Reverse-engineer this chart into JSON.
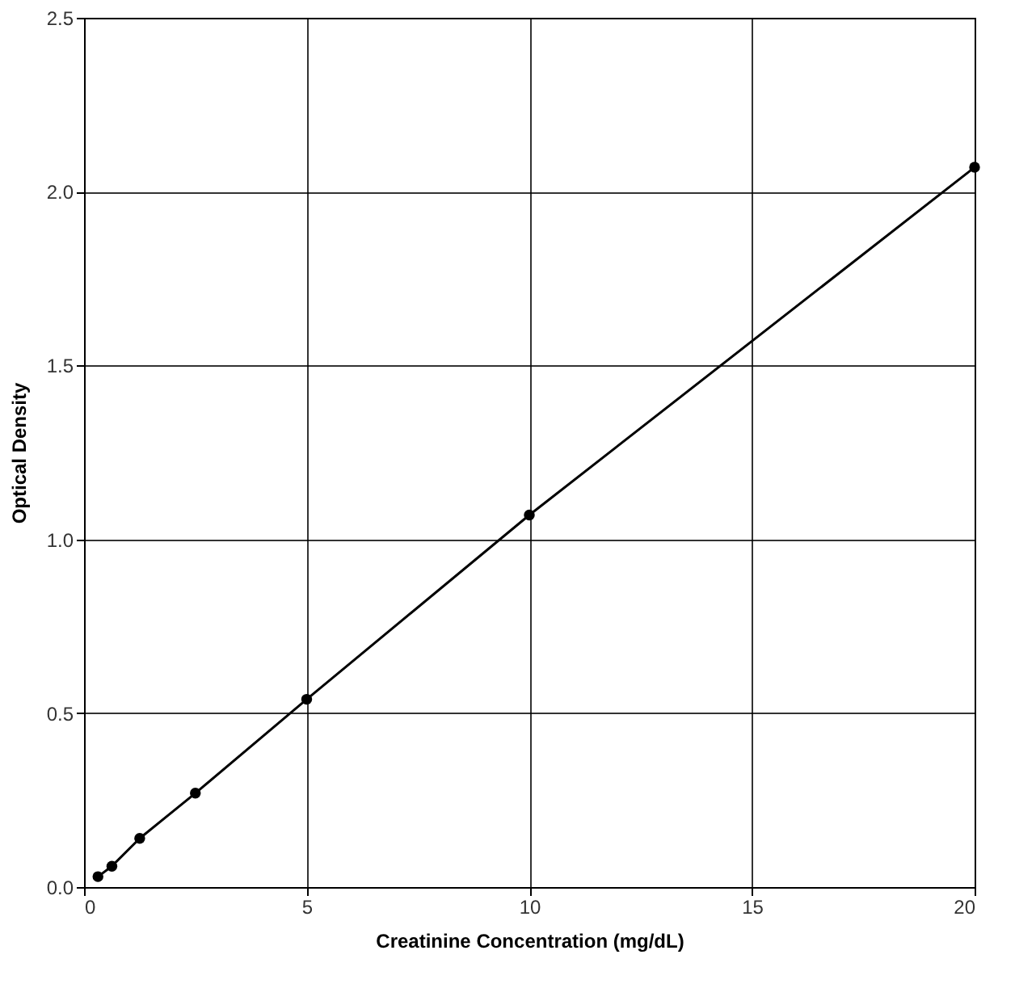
{
  "chart_data": {
    "type": "line",
    "xlabel": "Creatinine Concentration (mg/dL)",
    "ylabel": "Optical Density",
    "x": [
      0.3125,
      0.625,
      1.25,
      2.5,
      5,
      10,
      20
    ],
    "series": [
      {
        "color": "#000000",
        "values": [
          0.03,
          0.06,
          0.14,
          0.27,
          0.54,
          1.07,
          2.07
        ]
      }
    ],
    "xlim": [
      0,
      20
    ],
    "xticks": [
      0,
      5,
      10,
      15,
      20
    ],
    "ylim": [
      0,
      2.5
    ],
    "yticks": [
      {
        "value": 0,
        "label": "0.0"
      },
      0.5,
      {
        "value": 1,
        "label": "1.0"
      },
      1.5,
      {
        "value": 2,
        "label": "2.0"
      },
      2.5
    ],
    "grid": true,
    "marker": "circle",
    "line_style": "solid"
  }
}
